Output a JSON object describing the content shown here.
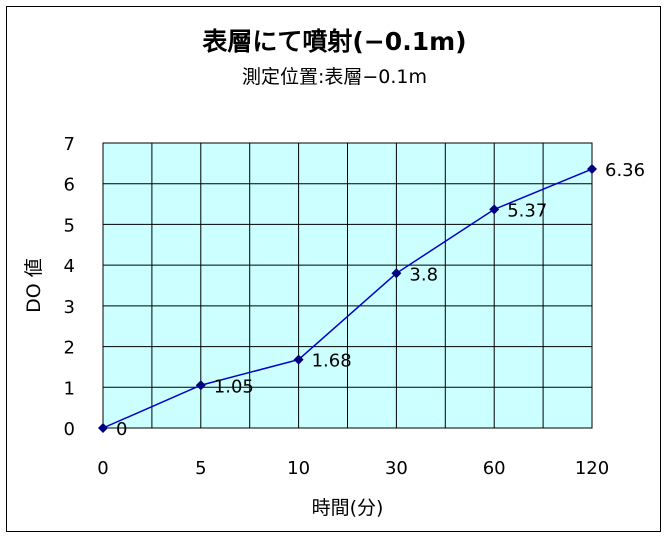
{
  "chart_data": {
    "type": "line",
    "title": "表層にて噴射(−0.1m)",
    "subtitle": "測定位置:表層−0.1m",
    "xlabel": "時間(分)",
    "ylabel": "DO 値",
    "categories": [
      "0",
      "5",
      "10",
      "30",
      "60",
      "120"
    ],
    "series": [
      {
        "values": [
          0,
          1.05,
          1.68,
          3.8,
          5.37,
          6.36
        ]
      }
    ],
    "data_labels": [
      "0",
      "1.05",
      "1.68",
      "3.8",
      "5.37",
      "6.36"
    ],
    "ylim": [
      0,
      7
    ],
    "yticks": [
      "0",
      "1",
      "2",
      "3",
      "4",
      "5",
      "6",
      "7"
    ],
    "grid": true,
    "legend": "none",
    "colors": {
      "plot_bg": "#ccffff",
      "line": "#0000cc",
      "marker": "#000080",
      "grid": "#000000"
    }
  }
}
